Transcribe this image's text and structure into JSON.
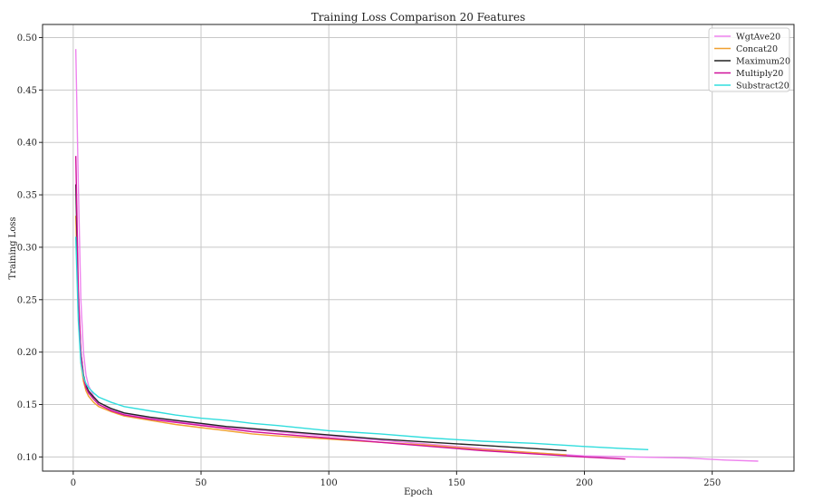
{
  "chart_data": {
    "type": "line",
    "title": "Training Loss Comparison 20 Features",
    "xlabel": "Epoch",
    "ylabel": "Training Loss",
    "xlim": [
      -12,
      282
    ],
    "ylim": [
      0.0865,
      0.5125
    ],
    "xticks": [
      0,
      50,
      100,
      150,
      200,
      250
    ],
    "yticks": [
      0.1,
      0.15,
      0.2,
      0.25,
      0.3,
      0.35,
      0.4,
      0.45,
      0.5
    ],
    "xtick_labels": [
      "0",
      "50",
      "100",
      "150",
      "200",
      "250"
    ],
    "ytick_labels": [
      "0.10",
      "0.15",
      "0.20",
      "0.25",
      "0.30",
      "0.35",
      "0.40",
      "0.45",
      "0.50"
    ],
    "grid": true,
    "legend_position": "top-right",
    "series": [
      {
        "name": "WgtAve20",
        "color": "#ee82ee",
        "points": [
          [
            1,
            0.489
          ],
          [
            2,
            0.36
          ],
          [
            3,
            0.25
          ],
          [
            4,
            0.2
          ],
          [
            5,
            0.178
          ],
          [
            6,
            0.168
          ],
          [
            8,
            0.158
          ],
          [
            10,
            0.152
          ],
          [
            15,
            0.145
          ],
          [
            20,
            0.141
          ],
          [
            30,
            0.137
          ],
          [
            40,
            0.134
          ],
          [
            50,
            0.131
          ],
          [
            60,
            0.128
          ],
          [
            70,
            0.126
          ],
          [
            80,
            0.124
          ],
          [
            100,
            0.12
          ],
          [
            120,
            0.116
          ],
          [
            140,
            0.112
          ],
          [
            160,
            0.108
          ],
          [
            180,
            0.104
          ],
          [
            200,
            0.101
          ],
          [
            220,
            0.1
          ],
          [
            240,
            0.099
          ],
          [
            255,
            0.097
          ],
          [
            268,
            0.096
          ]
        ]
      },
      {
        "name": "Concat20",
        "color": "#f0a030",
        "points": [
          [
            1,
            0.33
          ],
          [
            2,
            0.24
          ],
          [
            3,
            0.19
          ],
          [
            4,
            0.172
          ],
          [
            5,
            0.163
          ],
          [
            6,
            0.158
          ],
          [
            8,
            0.152
          ],
          [
            10,
            0.148
          ],
          [
            15,
            0.143
          ],
          [
            20,
            0.139
          ],
          [
            30,
            0.135
          ],
          [
            40,
            0.131
          ],
          [
            50,
            0.128
          ],
          [
            60,
            0.125
          ],
          [
            70,
            0.122
          ],
          [
            80,
            0.12
          ],
          [
            100,
            0.117
          ],
          [
            120,
            0.114
          ],
          [
            140,
            0.111
          ],
          [
            160,
            0.107
          ],
          [
            180,
            0.104
          ],
          [
            193,
            0.102
          ]
        ]
      },
      {
        "name": "Maximum20",
        "color": "#222222",
        "points": [
          [
            1,
            0.36
          ],
          [
            2,
            0.25
          ],
          [
            3,
            0.2
          ],
          [
            4,
            0.178
          ],
          [
            5,
            0.168
          ],
          [
            6,
            0.163
          ],
          [
            8,
            0.157
          ],
          [
            10,
            0.152
          ],
          [
            15,
            0.146
          ],
          [
            20,
            0.142
          ],
          [
            30,
            0.138
          ],
          [
            40,
            0.135
          ],
          [
            50,
            0.132
          ],
          [
            60,
            0.129
          ],
          [
            70,
            0.127
          ],
          [
            80,
            0.125
          ],
          [
            100,
            0.121
          ],
          [
            120,
            0.117
          ],
          [
            140,
            0.114
          ],
          [
            160,
            0.111
          ],
          [
            180,
            0.108
          ],
          [
            193,
            0.106
          ]
        ]
      },
      {
        "name": "Multiply20",
        "color": "#d0109a",
        "points": [
          [
            1,
            0.387
          ],
          [
            2,
            0.26
          ],
          [
            3,
            0.2
          ],
          [
            4,
            0.176
          ],
          [
            5,
            0.166
          ],
          [
            6,
            0.161
          ],
          [
            8,
            0.155
          ],
          [
            10,
            0.15
          ],
          [
            15,
            0.144
          ],
          [
            20,
            0.14
          ],
          [
            30,
            0.136
          ],
          [
            40,
            0.133
          ],
          [
            50,
            0.13
          ],
          [
            60,
            0.127
          ],
          [
            70,
            0.124
          ],
          [
            80,
            0.122
          ],
          [
            100,
            0.118
          ],
          [
            120,
            0.114
          ],
          [
            140,
            0.11
          ],
          [
            160,
            0.106
          ],
          [
            180,
            0.103
          ],
          [
            200,
            0.1
          ],
          [
            216,
            0.098
          ]
        ]
      },
      {
        "name": "Substract20",
        "color": "#30dddd",
        "points": [
          [
            1,
            0.31
          ],
          [
            2,
            0.23
          ],
          [
            3,
            0.19
          ],
          [
            4,
            0.176
          ],
          [
            5,
            0.17
          ],
          [
            6,
            0.166
          ],
          [
            8,
            0.161
          ],
          [
            10,
            0.157
          ],
          [
            15,
            0.152
          ],
          [
            20,
            0.148
          ],
          [
            30,
            0.144
          ],
          [
            40,
            0.14
          ],
          [
            50,
            0.137
          ],
          [
            60,
            0.135
          ],
          [
            70,
            0.132
          ],
          [
            80,
            0.13
          ],
          [
            100,
            0.125
          ],
          [
            120,
            0.122
          ],
          [
            140,
            0.118
          ],
          [
            160,
            0.115
          ],
          [
            180,
            0.113
          ],
          [
            200,
            0.11
          ],
          [
            215,
            0.108
          ],
          [
            225,
            0.107
          ]
        ]
      }
    ]
  }
}
